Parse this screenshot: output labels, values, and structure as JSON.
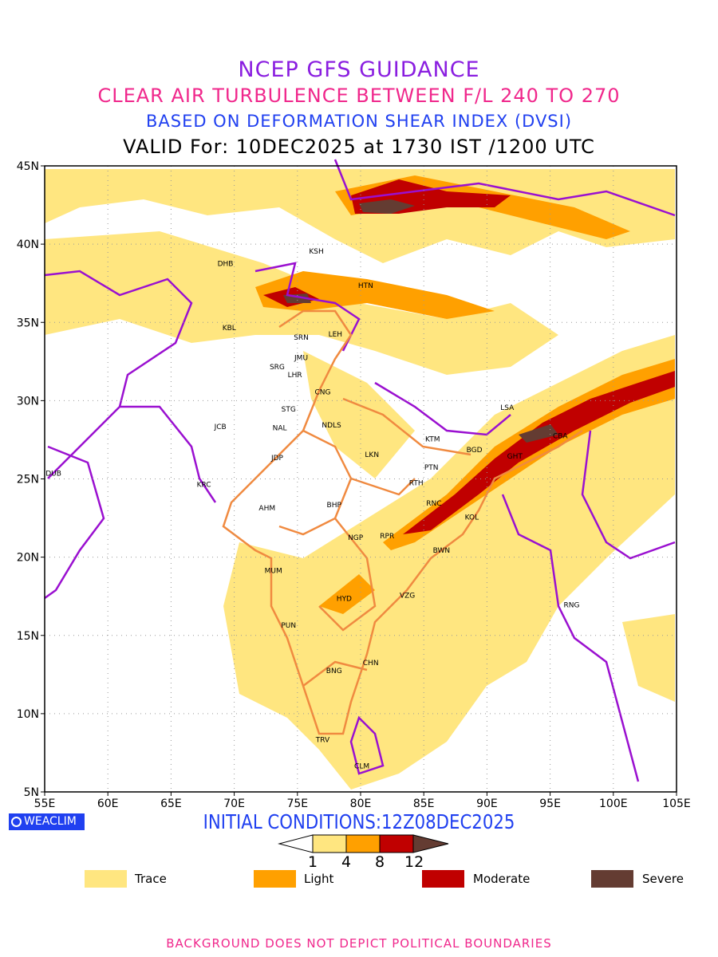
{
  "header": {
    "title": "NCEP GFS GUIDANCE",
    "subtitle": "CLEAR AIR TURBULENCE BETWEEN F/L 240 TO 270",
    "method": "BASED ON DEFORMATION SHEAR INDEX (DVSI)",
    "valid": "VALID For: 10DEC2025 at 1730 IST /1200 UTC"
  },
  "map": {
    "lon_range": [
      55,
      105
    ],
    "lat_range": [
      5,
      45
    ],
    "lon_ticks": [
      "55E",
      "60E",
      "65E",
      "70E",
      "75E",
      "80E",
      "85E",
      "90E",
      "95E",
      "100E",
      "105E"
    ],
    "lat_ticks": [
      "45N",
      "40N",
      "35N",
      "30N",
      "25N",
      "20N",
      "15N",
      "10N",
      "5N"
    ],
    "cities": [
      {
        "code": "DHB",
        "lon": 69.3,
        "lat": 38.8
      },
      {
        "code": "KSH",
        "lon": 76.5,
        "lat": 39.6
      },
      {
        "code": "HTN",
        "lon": 80.4,
        "lat": 37.4
      },
      {
        "code": "KBL",
        "lon": 69.6,
        "lat": 34.7
      },
      {
        "code": "SRN",
        "lon": 75.3,
        "lat": 34.1
      },
      {
        "code": "LEH",
        "lon": 78.0,
        "lat": 34.3
      },
      {
        "code": "JMU",
        "lon": 75.3,
        "lat": 32.8
      },
      {
        "code": "SRG",
        "lon": 73.4,
        "lat": 32.2
      },
      {
        "code": "LHR",
        "lon": 74.8,
        "lat": 31.7
      },
      {
        "code": "CNG",
        "lon": 77.0,
        "lat": 30.6
      },
      {
        "code": "STG",
        "lon": 74.3,
        "lat": 29.5
      },
      {
        "code": "NDLS",
        "lon": 77.7,
        "lat": 28.5
      },
      {
        "code": "NAL",
        "lon": 73.6,
        "lat": 28.3
      },
      {
        "code": "JCB",
        "lon": 68.9,
        "lat": 28.4
      },
      {
        "code": "JDP",
        "lon": 73.4,
        "lat": 26.4
      },
      {
        "code": "LKN",
        "lon": 80.9,
        "lat": 26.6
      },
      {
        "code": "KTM",
        "lon": 85.7,
        "lat": 27.6
      },
      {
        "code": "BGD",
        "lon": 89.0,
        "lat": 26.9
      },
      {
        "code": "LSA",
        "lon": 91.6,
        "lat": 29.6
      },
      {
        "code": "CBA",
        "lon": 95.8,
        "lat": 27.8
      },
      {
        "code": "GHT",
        "lon": 92.2,
        "lat": 26.5
      },
      {
        "code": "PTN",
        "lon": 85.6,
        "lat": 25.8
      },
      {
        "code": "RTH",
        "lon": 84.4,
        "lat": 24.8
      },
      {
        "code": "DUB",
        "lon": 55.7,
        "lat": 25.4
      },
      {
        "code": "KRC",
        "lon": 67.6,
        "lat": 24.7
      },
      {
        "code": "AHM",
        "lon": 72.6,
        "lat": 23.2
      },
      {
        "code": "BHP",
        "lon": 77.9,
        "lat": 23.4
      },
      {
        "code": "RNC",
        "lon": 85.8,
        "lat": 23.5
      },
      {
        "code": "KOL",
        "lon": 88.8,
        "lat": 22.6
      },
      {
        "code": "NGP",
        "lon": 79.6,
        "lat": 21.3
      },
      {
        "code": "RPR",
        "lon": 82.1,
        "lat": 21.4
      },
      {
        "code": "BWN",
        "lon": 86.4,
        "lat": 20.5
      },
      {
        "code": "MUM",
        "lon": 73.1,
        "lat": 19.2
      },
      {
        "code": "HYD",
        "lon": 78.7,
        "lat": 17.4
      },
      {
        "code": "VZG",
        "lon": 83.7,
        "lat": 17.6
      },
      {
        "code": "RNG",
        "lon": 96.7,
        "lat": 17.0
      },
      {
        "code": "PUN",
        "lon": 74.3,
        "lat": 15.7
      },
      {
        "code": "CHN",
        "lon": 80.8,
        "lat": 13.3
      },
      {
        "code": "BNG",
        "lon": 77.9,
        "lat": 12.8
      },
      {
        "code": "TRV",
        "lon": 77.0,
        "lat": 8.4
      },
      {
        "code": "CLM",
        "lon": 80.1,
        "lat": 6.7
      }
    ]
  },
  "footer": {
    "logo": "WEACLIM",
    "initial": "INITIAL CONDITIONS:12Z08DEC2025",
    "colorbar_ticks": [
      "1",
      "4",
      "8",
      "12"
    ],
    "legend": [
      {
        "label": "Trace",
        "color": "#ffe680"
      },
      {
        "label": "Light",
        "color": "#ffa000"
      },
      {
        "label": "Moderate",
        "color": "#c00000"
      },
      {
        "label": "Severe",
        "color": "#643c32"
      }
    ],
    "disclaimer": "BACKGROUND DOES NOT DEPICT POLITICAL BOUNDARIES"
  },
  "colors": {
    "border": "#9a10d0",
    "state": "#f08a40",
    "trace": "#ffe680",
    "light": "#ffa000",
    "moderate": "#c00000",
    "severe": "#643c32"
  }
}
